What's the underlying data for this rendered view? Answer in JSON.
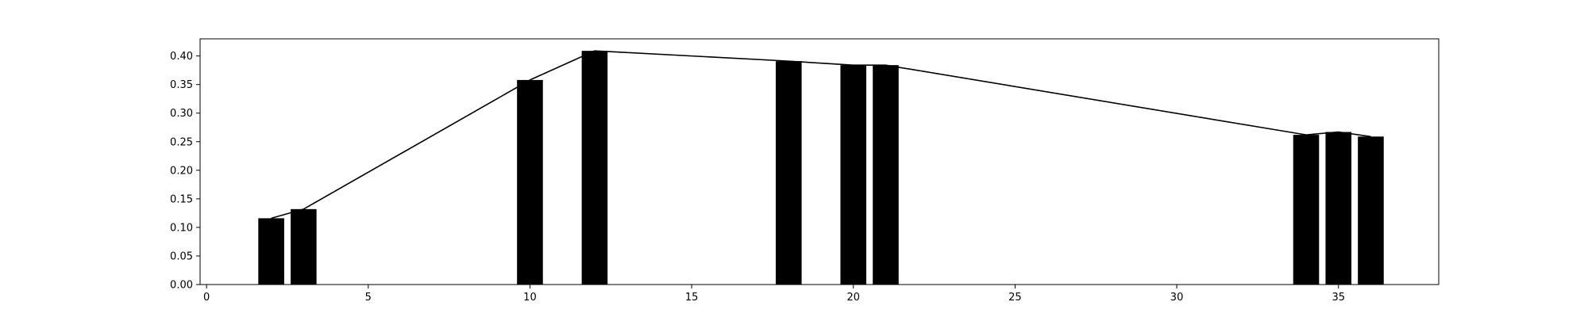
{
  "chart_data": {
    "type": "bar",
    "title": "",
    "xlabel": "",
    "ylabel": "",
    "xlim": [
      -0.2,
      38.1
    ],
    "ylim": [
      0.0,
      0.43
    ],
    "x_ticks": [
      0,
      5,
      10,
      15,
      20,
      25,
      30,
      35
    ],
    "y_ticks": [
      0.0,
      0.05,
      0.1,
      0.15,
      0.2,
      0.25,
      0.3,
      0.35,
      0.4
    ],
    "x_tick_labels": [
      "0",
      "5",
      "10",
      "15",
      "20",
      "25",
      "30",
      "35"
    ],
    "y_tick_labels": [
      "0.00",
      "0.05",
      "0.10",
      "0.15",
      "0.20",
      "0.25",
      "0.30",
      "0.35",
      "0.40"
    ],
    "bar_width": 0.8,
    "grid": false,
    "legend": "none",
    "colors": {
      "bar": "#000000",
      "line": "#000000",
      "axes": "#000000",
      "background": "#ffffff"
    },
    "series": [
      {
        "type": "bar",
        "x": [
          2,
          3,
          10,
          12,
          18,
          20,
          21,
          34,
          35,
          36
        ],
        "values": [
          0.116,
          0.132,
          0.358,
          0.409,
          0.391,
          0.384,
          0.384,
          0.262,
          0.267,
          0.259
        ]
      },
      {
        "type": "line",
        "x": [
          2,
          3,
          10,
          12,
          18,
          20,
          21,
          34,
          35,
          36
        ],
        "values": [
          0.116,
          0.132,
          0.358,
          0.409,
          0.391,
          0.384,
          0.384,
          0.262,
          0.267,
          0.259
        ]
      }
    ]
  }
}
